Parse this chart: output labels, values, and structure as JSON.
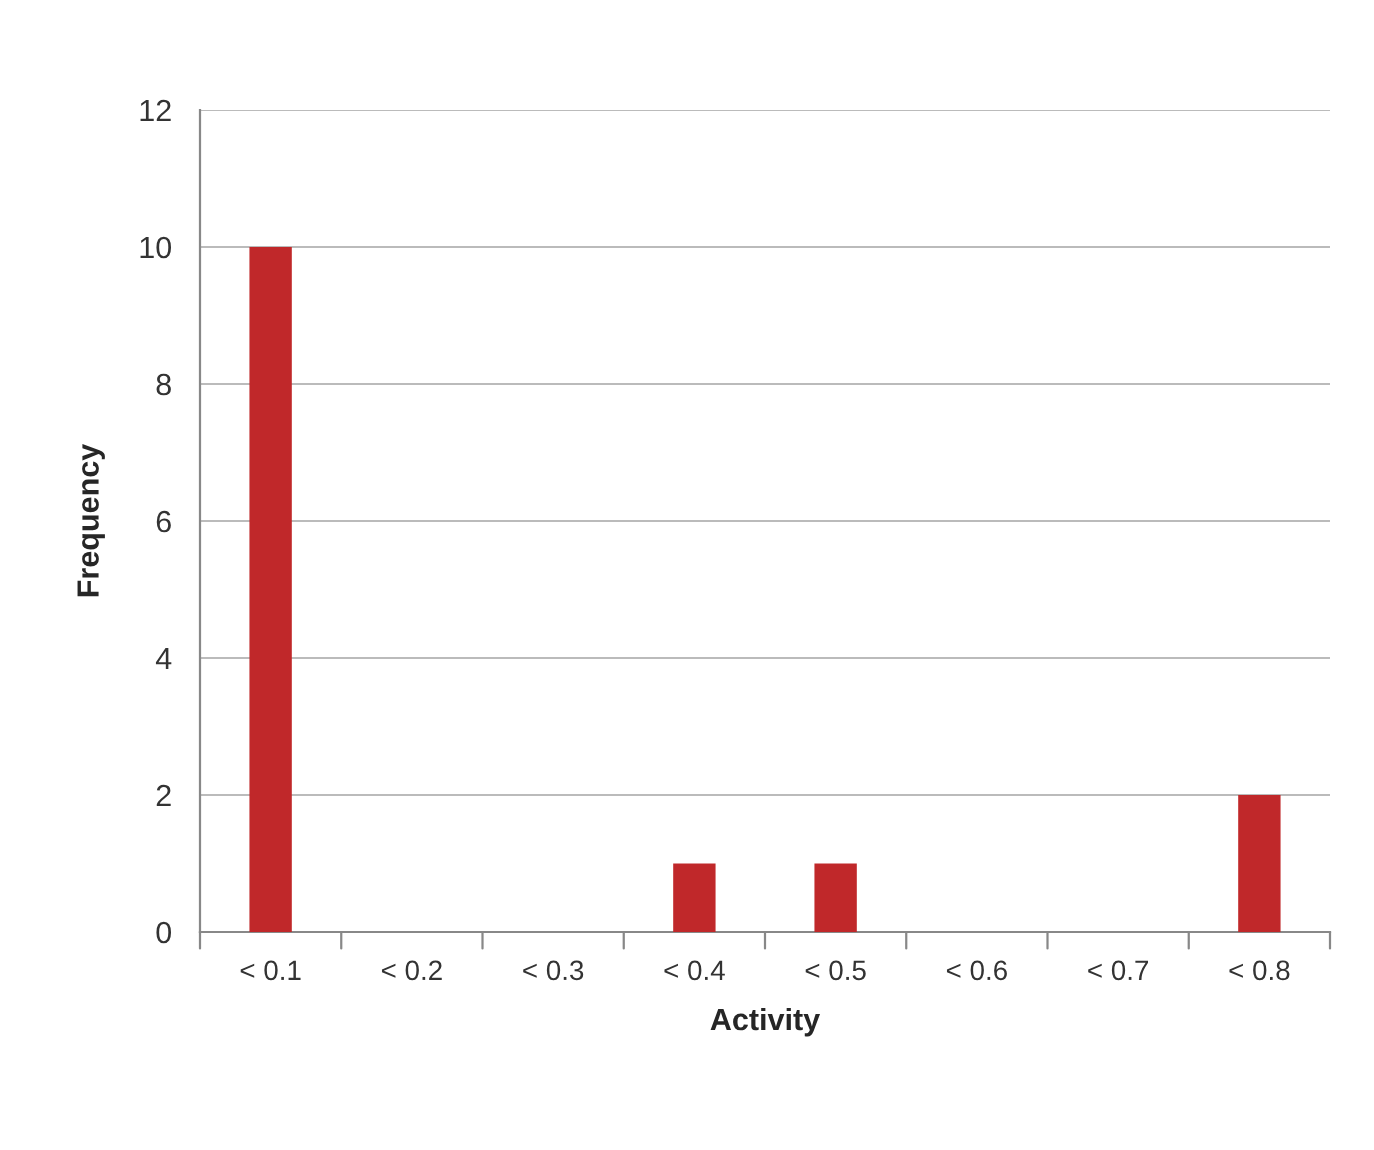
{
  "chart_data": {
    "type": "bar",
    "xlabel": "Activity",
    "ylabel": "Frequency",
    "categories": [
      "< 0.1",
      "< 0.2",
      "< 0.3",
      "< 0.4",
      "< 0.5",
      "< 0.6",
      "< 0.7",
      "< 0.8"
    ],
    "values": [
      10,
      0,
      0,
      1,
      1,
      0,
      0,
      2
    ],
    "color": "#c0282a",
    "ylim": [
      0,
      12
    ],
    "yticks": [
      0,
      2,
      4,
      6,
      8,
      10,
      12
    ],
    "grid": "y",
    "legend": false
  }
}
